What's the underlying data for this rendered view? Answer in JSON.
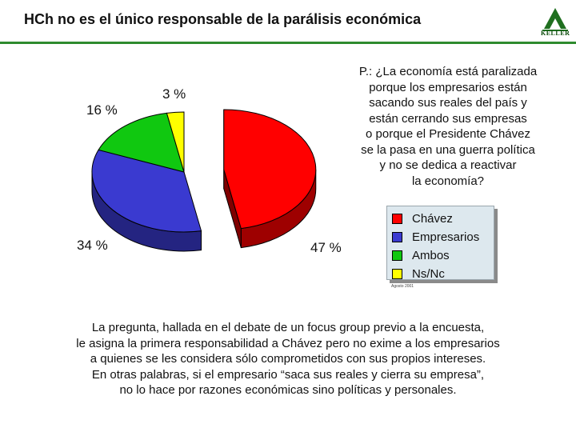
{
  "title": "HCh no es el único responsable de la parálisis económica",
  "logo": {
    "wordmark": "KELLER",
    "icon": "triangle-logo-icon"
  },
  "question": [
    "P.: ¿La economía está paralizada",
    "porque los empresarios están",
    "sacando sus reales del país y",
    "están cerrando sus empresas",
    "o porque el Presidente Chávez",
    "se la pasa en una guerra política",
    "y no se dedica a reactivar",
    "la economía?"
  ],
  "chart_data": {
    "type": "pie",
    "three_d": true,
    "title": "",
    "slices": [
      {
        "label": "Chávez",
        "value": 47,
        "display": "47 %",
        "color": "#ff0000",
        "exploded": true
      },
      {
        "label": "Empresarios",
        "value": 34,
        "display": "34 %",
        "color": "#3a3ad0"
      },
      {
        "label": "Ambos",
        "value": 16,
        "display": "16 %",
        "color": "#10c810"
      },
      {
        "label": "Ns/Nc",
        "value": 3,
        "display": "3 %",
        "color": "#ffff00"
      }
    ],
    "legend_position": "right"
  },
  "source": "Agosto 2001",
  "bottom_text": [
    "La pregunta, hallada en el debate de un focus group previo a la encuesta,",
    "le asigna la primera responsabilidad a Chávez pero no exime a los empresarios",
    "a quienes se les considera sólo comprometidos con sus propios intereses.",
    "En otras palabras, si el empresario “saca sus reales y cierra su empresa”,",
    "no lo hace por razones económicas sino políticas y personales."
  ]
}
